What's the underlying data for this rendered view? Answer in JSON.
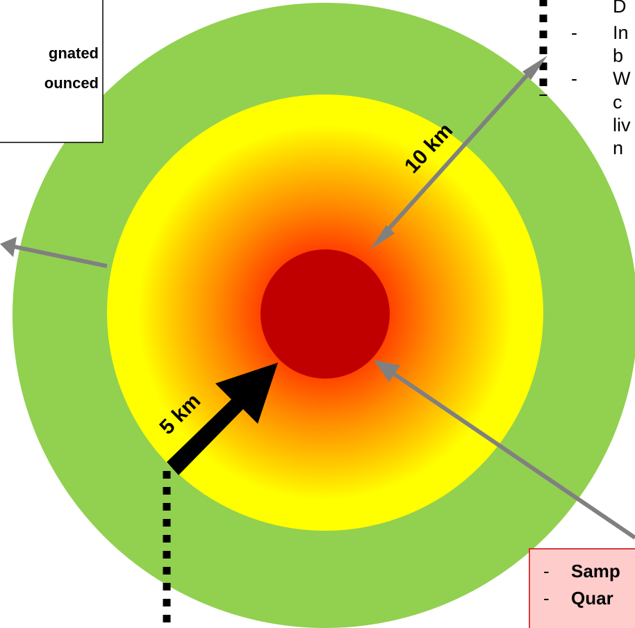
{
  "diagram": {
    "zones": {
      "center_color": "#c00000",
      "gradient_colors": [
        "#ff3300",
        "#ff8c00",
        "#ffd000",
        "#ffff00"
      ],
      "outer_color": "#92d050"
    },
    "arrows": {
      "outer_label": "10 km",
      "inner_label": "5 km",
      "grey_color": "#808080",
      "black_color": "#000000"
    },
    "top_left_box": {
      "line1": "gnated",
      "line2": "ounced"
    },
    "top_right_list": {
      "line1": "D",
      "items": [
        {
          "dash": "-",
          "lines": [
            "In",
            "b"
          ]
        },
        {
          "dash": "-",
          "lines": [
            "W",
            "c",
            "liv",
            "n"
          ]
        }
      ]
    },
    "bottom_right_box": {
      "background": "#ffcccc",
      "items": [
        {
          "dash": "-",
          "text": "Samp"
        },
        {
          "dash": "-",
          "text": "Quar"
        }
      ]
    }
  }
}
